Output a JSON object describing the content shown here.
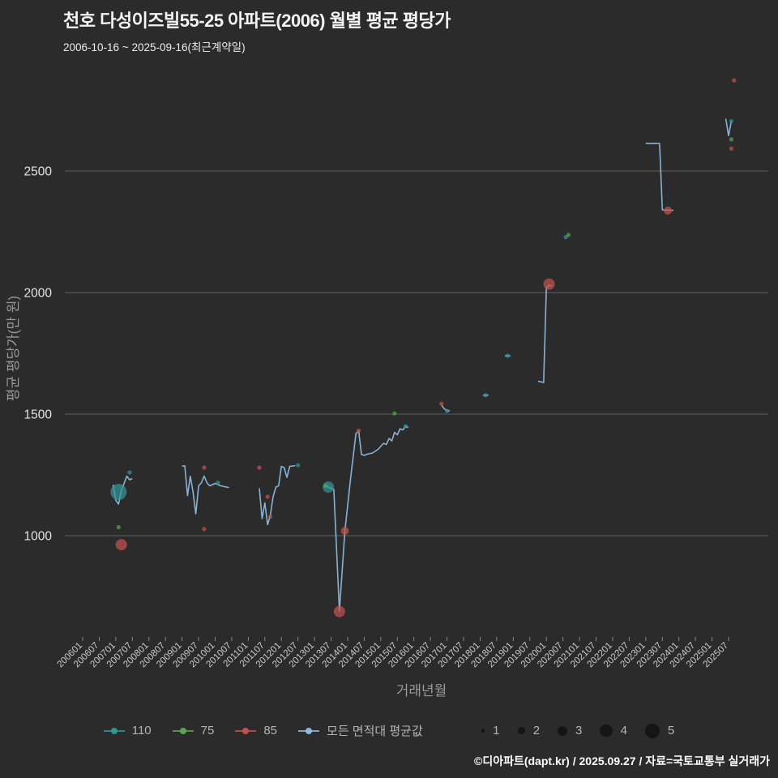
{
  "title": "천호 다성이즈빌55-25 아파트(2006) 월별 평균 평당가",
  "subtitle": "2006-10-16 ~ 2025-09-16(최근계약일)",
  "footer": "©디아파트(dapt.kr) / 2025.09.27 / 자료=국토교통부 실거래가",
  "colors": {
    "background": "#2b2b2b",
    "grid": "#5f5f5f",
    "line": "#8fb8dc",
    "teal": "#339494",
    "green": "#56a556",
    "red": "#c35150"
  },
  "chart_data": {
    "type": "line+scatter",
    "title": "천호 다성이즈빌55-25 아파트(2006) 월별 평균 평당가",
    "subtitle": "2006-10-16 ~ 2025-09-16(최근계약일)",
    "xlabel": "거래년월",
    "ylabel": "평균 평당가(만 원)",
    "ylim": [
      620,
      2950
    ],
    "y_ticks": [
      1000,
      1500,
      2000,
      2500
    ],
    "x_ticks": [
      "200601",
      "200607",
      "200701",
      "200707",
      "200801",
      "200807",
      "200901",
      "200907",
      "201001",
      "201007",
      "201101",
      "201107",
      "201201",
      "201207",
      "201301",
      "201307",
      "201401",
      "201407",
      "201501",
      "201507",
      "201601",
      "201607",
      "201701",
      "201707",
      "201801",
      "201807",
      "201901",
      "201907",
      "202001",
      "202007",
      "202101",
      "202107",
      "202201",
      "202207",
      "202301",
      "202307",
      "202401",
      "202407",
      "202501",
      "202507"
    ],
    "line_series": {
      "name": "모든 면적대 평균값",
      "color": "#8fb8dc",
      "segments": [
        [
          [
            "2006-12",
            1210
          ],
          [
            "2007-01",
            1145
          ],
          [
            "2007-02",
            1130
          ],
          [
            "2007-03",
            1185
          ],
          [
            "2007-05",
            1245
          ],
          [
            "2007-06",
            1230
          ],
          [
            "2007-07",
            1235
          ]
        ],
        [
          [
            "2009-01",
            1287
          ],
          [
            "2009-02",
            1287
          ],
          [
            "2009-03",
            1165
          ],
          [
            "2009-04",
            1245
          ],
          [
            "2009-05",
            1180
          ],
          [
            "2009-06",
            1090
          ],
          [
            "2009-07",
            1205
          ],
          [
            "2009-08",
            1218
          ],
          [
            "2009-09",
            1245
          ],
          [
            "2009-10",
            1218
          ],
          [
            "2009-11",
            1205
          ],
          [
            "2010-01",
            1215
          ],
          [
            "2010-03",
            1205
          ],
          [
            "2010-06",
            1198
          ]
        ],
        [
          [
            "2011-05",
            1195
          ],
          [
            "2011-06",
            1070
          ],
          [
            "2011-07",
            1135
          ],
          [
            "2011-08",
            1045
          ],
          [
            "2011-09",
            1085
          ],
          [
            "2011-10",
            1160
          ],
          [
            "2011-11",
            1200
          ],
          [
            "2011-12",
            1205
          ],
          [
            "2012-01",
            1285
          ],
          [
            "2012-02",
            1280
          ],
          [
            "2012-03",
            1240
          ],
          [
            "2012-04",
            1285
          ],
          [
            "2012-06",
            1288
          ]
        ],
        [
          [
            "2013-05",
            1205
          ],
          [
            "2013-06",
            1200
          ],
          [
            "2013-07",
            1195
          ],
          [
            "2013-08",
            1190
          ],
          [
            "2013-10",
            690
          ],
          [
            "2013-12",
            1020
          ],
          [
            "2014-02",
            1230
          ],
          [
            "2014-04",
            1420
          ],
          [
            "2014-05",
            1430
          ],
          [
            "2014-06",
            1335
          ],
          [
            "2014-07",
            1330
          ],
          [
            "2014-08",
            1335
          ],
          [
            "2014-10",
            1340
          ],
          [
            "2014-12",
            1355
          ],
          [
            "2015-02",
            1380
          ],
          [
            "2015-03",
            1375
          ],
          [
            "2015-04",
            1400
          ],
          [
            "2015-05",
            1390
          ],
          [
            "2015-06",
            1425
          ],
          [
            "2015-07",
            1415
          ],
          [
            "2015-08",
            1440
          ],
          [
            "2015-09",
            1435
          ],
          [
            "2015-10",
            1450
          ],
          [
            "2015-11",
            1445
          ]
        ],
        [
          [
            "2016-11",
            1537
          ],
          [
            "2016-12",
            1522
          ],
          [
            "2017-01",
            1515
          ],
          [
            "2017-02",
            1513
          ]
        ],
        [
          [
            "2018-02",
            1578
          ],
          [
            "2018-04",
            1578
          ]
        ],
        [
          [
            "2018-10",
            1740
          ],
          [
            "2018-12",
            1740
          ]
        ],
        [
          [
            "2019-10",
            1635
          ],
          [
            "2019-11",
            1633
          ],
          [
            "2019-12",
            1630
          ],
          [
            "2020-01",
            2020
          ],
          [
            "2020-02",
            2030
          ],
          [
            "2020-03",
            2028
          ]
        ],
        [
          [
            "2023-01",
            2613
          ],
          [
            "2023-06",
            2613
          ],
          [
            "2023-07",
            2340
          ],
          [
            "2023-11",
            2338
          ]
        ],
        [
          [
            "2025-06",
            2715
          ],
          [
            "2025-07",
            2645
          ],
          [
            "2025-08",
            2705
          ]
        ]
      ]
    },
    "scatter_series": [
      {
        "name": "110",
        "color": "#339494",
        "points": [
          [
            "2007-02",
            1180,
            4
          ],
          [
            "2007-06",
            1260,
            1
          ],
          [
            "2010-02",
            1218,
            1
          ],
          [
            "2012-07",
            1290,
            1
          ],
          [
            "2013-06",
            1200,
            3
          ],
          [
            "2015-10",
            1450,
            1
          ],
          [
            "2017-01",
            1513,
            1
          ],
          [
            "2018-03",
            1578,
            1
          ],
          [
            "2018-11",
            1740,
            1
          ],
          [
            "2020-08",
            2228,
            1
          ],
          [
            "2025-08",
            2705,
            1
          ]
        ]
      },
      {
        "name": "75",
        "color": "#56a556",
        "points": [
          [
            "2007-02",
            1035,
            1
          ],
          [
            "2013-05",
            1205,
            1
          ],
          [
            "2015-06",
            1503,
            1
          ],
          [
            "2020-09",
            2237,
            1
          ],
          [
            "2025-08",
            2630,
            1
          ]
        ]
      },
      {
        "name": "85",
        "color": "#c35150",
        "points": [
          [
            "2007-03",
            963,
            3
          ],
          [
            "2009-09",
            1280,
            1
          ],
          [
            "2009-09",
            1027,
            1
          ],
          [
            "2011-05",
            1280,
            1
          ],
          [
            "2011-08",
            1160,
            1
          ],
          [
            "2011-09",
            1078,
            1
          ],
          [
            "2013-10",
            688,
            3
          ],
          [
            "2013-12",
            1020,
            2
          ],
          [
            "2014-05",
            1432,
            1
          ],
          [
            "2016-11",
            1543,
            1
          ],
          [
            "2020-02",
            2035,
            3
          ],
          [
            "2023-09",
            2337,
            2
          ],
          [
            "2025-08",
            2592,
            1
          ],
          [
            "2025-09",
            2873,
            1
          ]
        ]
      }
    ],
    "size_legend": {
      "sizes": [
        1,
        2,
        3,
        4,
        5
      ]
    },
    "legend_position": "bottom",
    "grid": "horizontal-only"
  }
}
